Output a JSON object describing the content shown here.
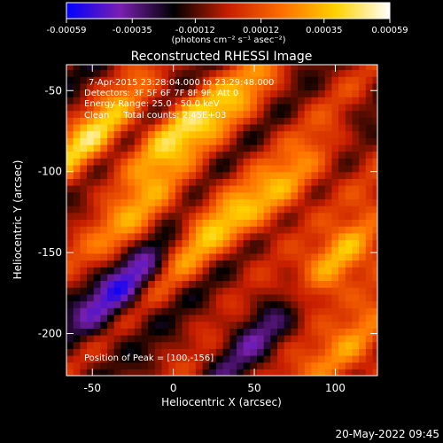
{
  "chart_data": {
    "type": "heatmap",
    "title": "Reconstructed RHESSI Image",
    "colorbar": {
      "tick_labels": [
        "-0.00059",
        "-0.00035",
        "-0.00012",
        "0.00012",
        "0.00035",
        "0.00059"
      ],
      "tick_values": [
        -0.00059,
        -0.00035,
        -0.00012,
        0.00012,
        0.00035,
        0.00059
      ],
      "range": [
        -0.00059,
        0.00059
      ],
      "unit_label": "(photons cm⁻² s⁻¹ asec⁻²)",
      "stops": [
        "#0000ff",
        "#7a1fb0",
        "#000000",
        "#c81e00",
        "#ff6e00",
        "#ffd200",
        "#ffffff"
      ]
    },
    "annotations": {
      "time": "7-Apr-2015 23:28:04.000 to 23:29:48.000",
      "detectors": "Detectors: 3F 5F 6F 7F 8F 9F, Att 0",
      "energy": "Energy Range: 25.0 - 50.0 keV",
      "clean": "Clean     Total counts: 2.45E+03",
      "peak": "Position of Peak = [100,-156]"
    },
    "xlabel": "Heliocentric X (arcsec)",
    "ylabel": "Heliocentric Y (arcsec)",
    "xlim": [
      -66,
      126
    ],
    "ylim": [
      -226,
      -34
    ],
    "xticks": [
      -50,
      0,
      50,
      100
    ],
    "yticks": [
      -50,
      -100,
      -150,
      -200
    ],
    "peak_position": [
      100,
      -156
    ],
    "bands": [
      {
        "x": -50,
        "y": -80,
        "value": 0.00045
      },
      {
        "x": 0,
        "y": -75,
        "value": 0.0004
      },
      {
        "x": 40,
        "y": -60,
        "value": 0.0003
      },
      {
        "x": -20,
        "y": -130,
        "value": 0.0004
      },
      {
        "x": 20,
        "y": -140,
        "value": 0.00035
      },
      {
        "x": 100,
        "y": -156,
        "value": 0.00059
      },
      {
        "x": 70,
        "y": -110,
        "value": 0.0004
      },
      {
        "x": -30,
        "y": -170,
        "value": -0.0005
      },
      {
        "x": 60,
        "y": -190,
        "value": -0.0003
      },
      {
        "x": 110,
        "y": -210,
        "value": 0.0004
      }
    ]
  },
  "timestamp": "20-May-2022 09:45"
}
